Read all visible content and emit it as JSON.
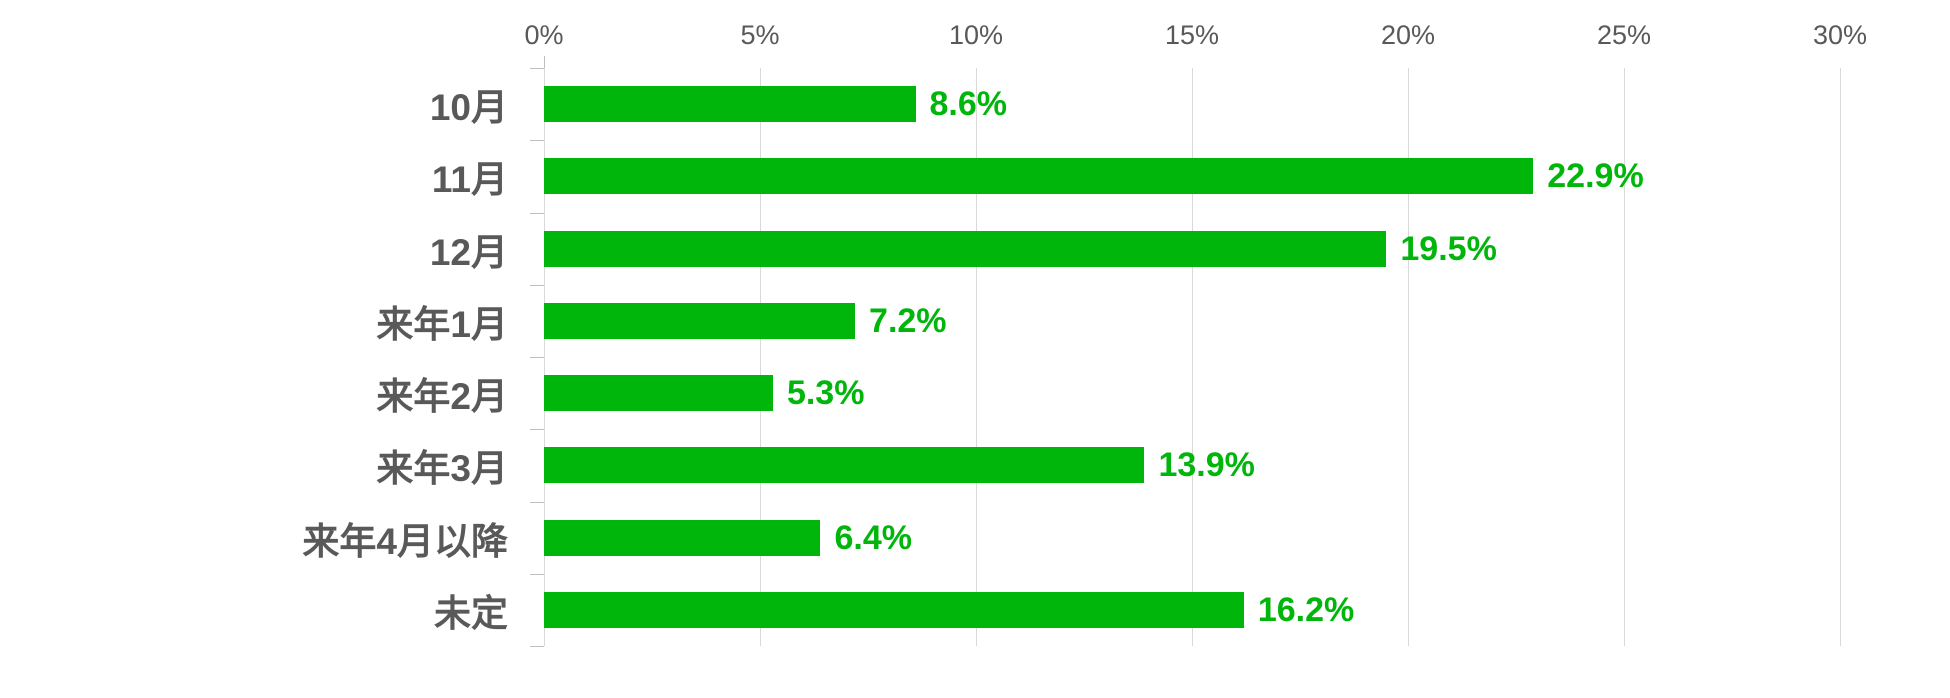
{
  "chart_data": {
    "type": "bar",
    "orientation": "horizontal",
    "title": "",
    "xlabel": "",
    "ylabel": "",
    "categories": [
      "10月",
      "11月",
      "12月",
      "来年1月",
      "来年2月",
      "来年3月",
      "来年4月以降",
      "未定"
    ],
    "values": [
      8.6,
      22.9,
      19.5,
      7.2,
      5.3,
      13.9,
      6.4,
      16.2
    ],
    "value_labels": [
      "8.6%",
      "22.9%",
      "19.5%",
      "7.2%",
      "5.3%",
      "13.9%",
      "6.4%",
      "16.2%"
    ],
    "xlim": [
      0,
      30
    ],
    "x_tick_values": [
      0,
      5,
      10,
      15,
      20,
      25,
      30
    ],
    "x_tick_labels": [
      "0%",
      "5%",
      "10%",
      "15%",
      "20%",
      "25%",
      "30%"
    ],
    "axis_position": "top",
    "grid": "vertical-only",
    "legend": "none"
  },
  "colors": {
    "bar": "#00B60A",
    "value_label": "#00B60A",
    "category_label": "#595959",
    "axis_label": "#595959",
    "gridline": "#D9D9D9",
    "tick": "#BFBFBF",
    "background": "#FFFFFF"
  }
}
